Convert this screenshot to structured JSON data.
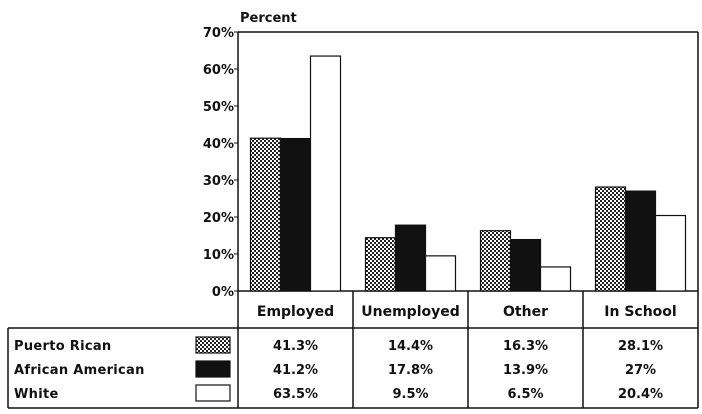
{
  "chart_data": {
    "type": "bar",
    "ylabel": "Percent",
    "ylim": [
      0,
      70
    ],
    "yticks": [
      "0%",
      "10%",
      "20%",
      "30%",
      "40%",
      "50%",
      "60%",
      "70%"
    ],
    "categories": [
      "Employed",
      "Unemployed",
      "Other",
      "In School"
    ],
    "series": [
      {
        "name": "Puerto Rican",
        "values": [
          41.3,
          14.4,
          16.3,
          28.1
        ],
        "labels": [
          "41.3%",
          "14.4%",
          "16.3%",
          "28.1%"
        ],
        "fill": "checker"
      },
      {
        "name": "African American",
        "values": [
          41.2,
          17.8,
          13.9,
          27
        ],
        "labels": [
          "41.2%",
          "17.8%",
          "13.9%",
          "27%"
        ],
        "fill": "#111111"
      },
      {
        "name": "White",
        "values": [
          63.5,
          9.5,
          6.5,
          20.4
        ],
        "labels": [
          "63.5%",
          "9.5%",
          "6.5%",
          "20.4%"
        ],
        "fill": "#ffffff"
      }
    ],
    "grid": false,
    "legend": "data-table-below"
  }
}
